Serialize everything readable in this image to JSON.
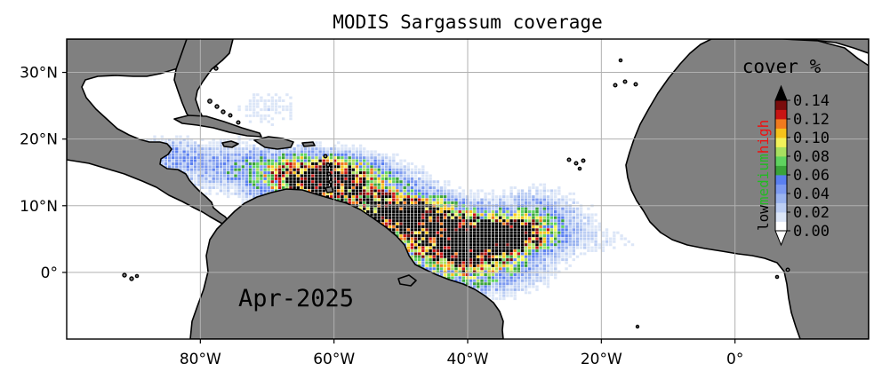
{
  "title": "MODIS Sargassum coverage",
  "date_label": "Apr-2025",
  "map": {
    "lon_range": [
      -100,
      20
    ],
    "lat_range": [
      -10,
      35
    ],
    "lon_ticks": [
      {
        "value": -80,
        "label": "80°W"
      },
      {
        "value": -60,
        "label": "60°W"
      },
      {
        "value": -40,
        "label": "40°W"
      },
      {
        "value": -20,
        "label": "20°W"
      },
      {
        "value": 0,
        "label": "0°"
      }
    ],
    "lat_ticks": [
      {
        "value": 30,
        "label": "30°N"
      },
      {
        "value": 20,
        "label": "20°N"
      },
      {
        "value": 10,
        "label": "10°N"
      },
      {
        "value": 0,
        "label": "0°"
      }
    ],
    "grid": true,
    "land_color": "#808080",
    "ocean_color": "#ffffff"
  },
  "colorbar": {
    "title": "cover %",
    "placement": "right, inside map",
    "extend_both": true,
    "tick_labels": [
      "0.00",
      "0.02",
      "0.04",
      "0.06",
      "0.08",
      "0.10",
      "0.12",
      "0.14"
    ],
    "bins": [
      {
        "from": 0.0,
        "to": 0.01,
        "color": "#ffffff"
      },
      {
        "from": 0.01,
        "to": 0.02,
        "color": "#dce6f7"
      },
      {
        "from": 0.02,
        "to": 0.03,
        "color": "#bccef3"
      },
      {
        "from": 0.03,
        "to": 0.04,
        "color": "#9bb4ef"
      },
      {
        "from": 0.04,
        "to": 0.05,
        "color": "#7d9af0"
      },
      {
        "from": 0.05,
        "to": 0.06,
        "color": "#5a7ff0"
      },
      {
        "from": 0.06,
        "to": 0.07,
        "color": "#3aa33a"
      },
      {
        "from": 0.07,
        "to": 0.08,
        "color": "#5fd35f"
      },
      {
        "from": 0.08,
        "to": 0.09,
        "color": "#a8e060"
      },
      {
        "from": 0.09,
        "to": 0.1,
        "color": "#f2f25a"
      },
      {
        "from": 0.1,
        "to": 0.11,
        "color": "#f5c21b"
      },
      {
        "from": 0.11,
        "to": 0.12,
        "color": "#f07a1e"
      },
      {
        "from": 0.12,
        "to": 0.13,
        "color": "#c81414"
      },
      {
        "from": 0.13,
        "to": 0.14,
        "color": "#7a0c0c"
      }
    ],
    "under_color": "#ffffff",
    "over_color": "#000000",
    "category_labels": [
      {
        "text": "low",
        "color": "#000000"
      },
      {
        "text": "medium",
        "color": "#22bb22"
      },
      {
        "text": "high",
        "color": "#ee1111"
      }
    ]
  }
}
